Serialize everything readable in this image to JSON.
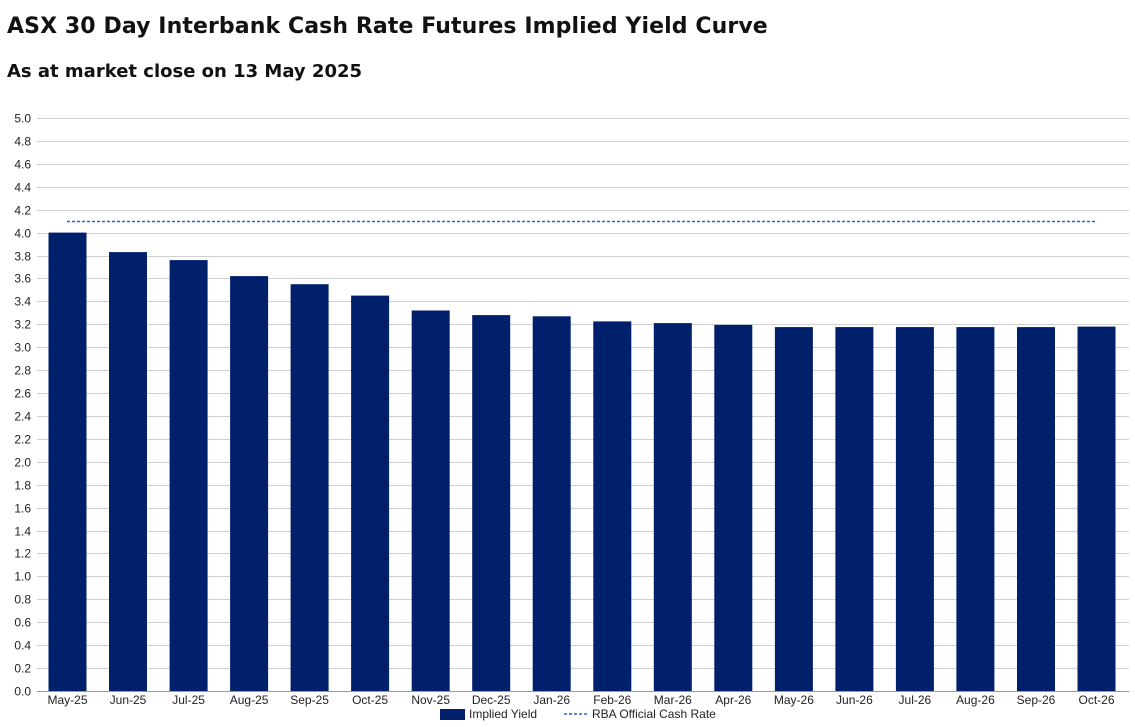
{
  "chart_data": {
    "type": "bar",
    "title": "ASX 30 Day Interbank Cash Rate Futures Implied Yield Curve",
    "subtitle": "As at market close on 13 May 2025",
    "categories": [
      "May-25",
      "Jun-25",
      "Jul-25",
      "Aug-25",
      "Sep-25",
      "Oct-25",
      "Nov-25",
      "Dec-25",
      "Jan-26",
      "Feb-26",
      "Mar-26",
      "Apr-26",
      "May-26",
      "Jun-26",
      "Jul-26",
      "Aug-26",
      "Sep-26",
      "Oct-26"
    ],
    "series": [
      {
        "name": "Implied Yield",
        "color": "#00206B",
        "values": [
          4.0,
          3.83,
          3.76,
          3.62,
          3.55,
          3.45,
          3.32,
          3.28,
          3.27,
          3.225,
          3.21,
          3.195,
          3.175,
          3.175,
          3.175,
          3.175,
          3.175,
          3.18
        ]
      }
    ],
    "reference_line": {
      "name": "RBA Official Cash Rate",
      "value": 4.1,
      "color": "#2F5FD0",
      "style": "dashed"
    },
    "ylim": [
      0,
      5.0
    ],
    "yticks": [
      "0.0",
      "0.2",
      "0.4",
      "0.6",
      "0.8",
      "1.0",
      "1.2",
      "1.4",
      "1.6",
      "1.8",
      "2.0",
      "2.2",
      "2.4",
      "2.6",
      "2.8",
      "3.0",
      "3.2",
      "3.4",
      "3.6",
      "3.8",
      "4.0",
      "4.2",
      "4.4",
      "4.6",
      "4.8",
      "5.0"
    ],
    "grid": true,
    "legend_position": "bottom-center",
    "xlabel": "",
    "ylabel": ""
  }
}
